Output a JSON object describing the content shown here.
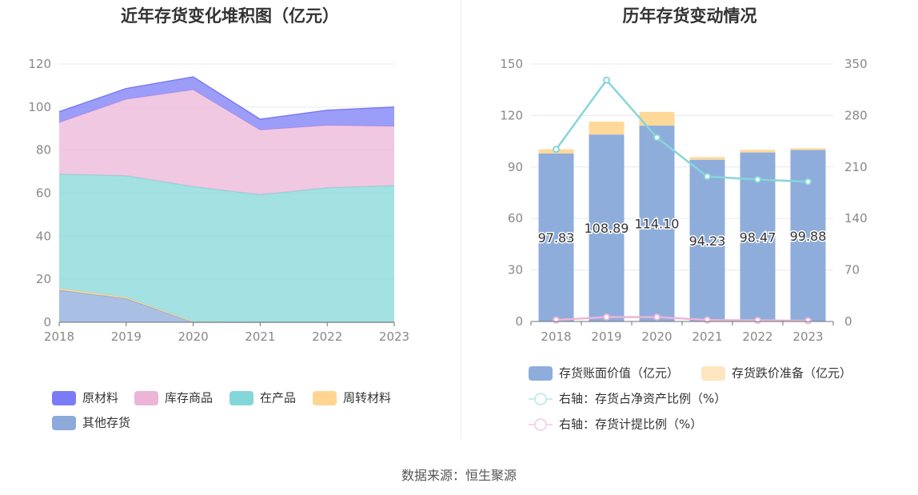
{
  "source_note": "数据来源：恒生聚源",
  "chart_data": [
    {
      "type": "area",
      "stacked": true,
      "title": "近年存货变化堆积图（亿元）",
      "categories": [
        "2018",
        "2019",
        "2020",
        "2021",
        "2022",
        "2023"
      ],
      "ylim": [
        0,
        120
      ],
      "yticks": [
        0,
        20,
        40,
        60,
        80,
        100,
        120
      ],
      "series": [
        {
          "name": "其他存货",
          "color": "#8eaadb",
          "values": [
            15,
            11,
            0,
            0,
            0,
            0
          ]
        },
        {
          "name": "周转材料",
          "color": "#ffd591",
          "values": [
            0.8,
            0.6,
            0.3,
            0,
            0,
            0
          ]
        },
        {
          "name": "在产品",
          "color": "#84d7d9",
          "values": [
            53,
            56.5,
            62.7,
            59.3,
            62.5,
            63.5
          ]
        },
        {
          "name": "库存商品",
          "color": "#ecb5d8",
          "values": [
            24,
            35.5,
            45,
            30,
            29,
            27.5
          ]
        },
        {
          "name": "原材料",
          "color": "#7b7cf5",
          "values": [
            5,
            5,
            6,
            5,
            7,
            9
          ]
        }
      ],
      "legend": [
        "原材料",
        "库存商品",
        "在产品",
        "周转材料",
        "其他存货"
      ]
    },
    {
      "type": "bar",
      "stacked": true,
      "title": "历年存货变动情况",
      "categories": [
        "2018",
        "2019",
        "2020",
        "2021",
        "2022",
        "2023"
      ],
      "ylim": [
        0,
        150
      ],
      "yticks": [
        0,
        30,
        60,
        90,
        120,
        150
      ],
      "y2lim": [
        0,
        350
      ],
      "y2ticks": [
        0,
        70,
        140,
        210,
        280,
        350
      ],
      "series": [
        {
          "name": "存货账面价值（亿元）",
          "color": "#8eaddb",
          "values": [
            97.83,
            108.89,
            114.1,
            94.23,
            98.47,
            99.88
          ],
          "labels": [
            "97.83",
            "108.89",
            "114.10",
            "94.23",
            "98.47",
            "99.88"
          ]
        },
        {
          "name": "存货跌价准备（亿元）",
          "color": "#ffd99a",
          "values": [
            2.5,
            7.5,
            8,
            1.5,
            1.5,
            1
          ]
        }
      ],
      "lines": [
        {
          "name": "右轴：存货占净资产比例（%）",
          "axis": "right",
          "color": "#86d6d8",
          "values": [
            234,
            328,
            250,
            197,
            193,
            190
          ]
        },
        {
          "name": "右轴：存货计提比例（%）",
          "axis": "right",
          "color": "#ecb5d8",
          "values": [
            2,
            6,
            6,
            2,
            1.5,
            1
          ]
        }
      ]
    }
  ]
}
